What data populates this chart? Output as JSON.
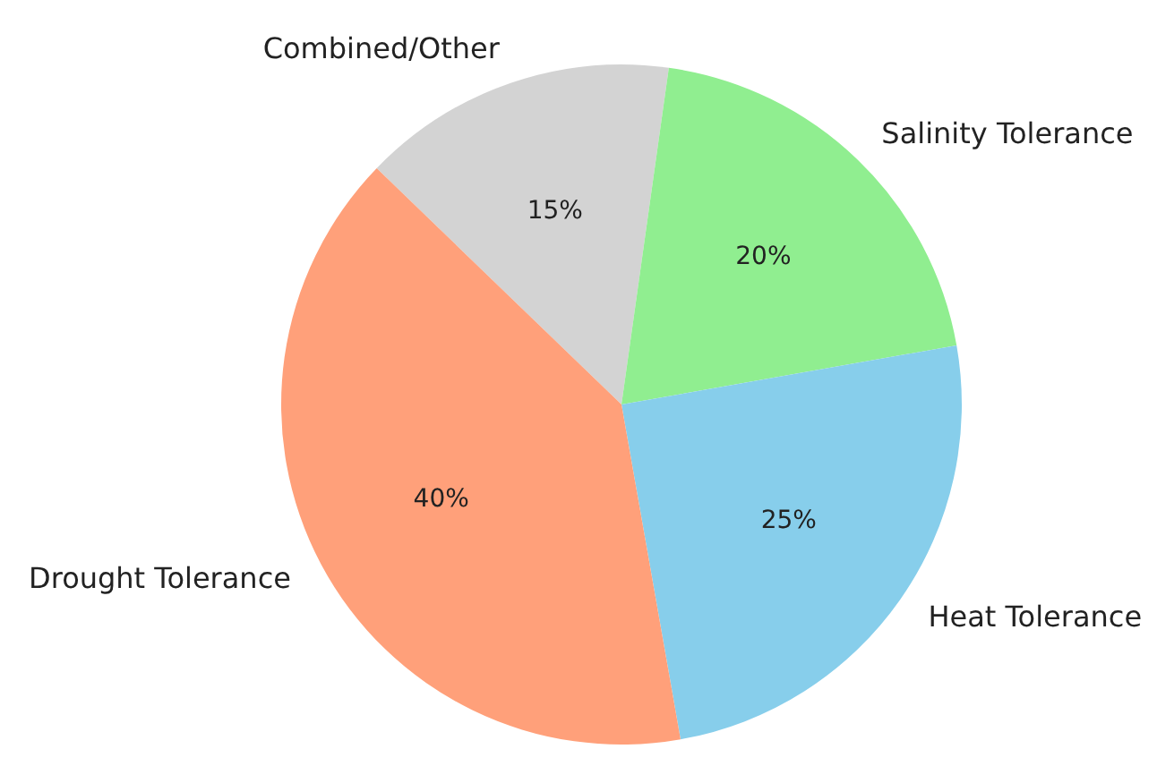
{
  "chart_data": {
    "type": "pie",
    "categories": [
      "Combined/Other",
      "Salinity Tolerance",
      "Heat Tolerance",
      "Drought Tolerance"
    ],
    "values": [
      15,
      20,
      25,
      40
    ],
    "colors": [
      "#d3d3d3",
      "#90ee90",
      "#87ceeb",
      "#ffa07a"
    ],
    "value_labels": [
      "15%",
      "20%",
      "25%",
      "40%"
    ]
  }
}
